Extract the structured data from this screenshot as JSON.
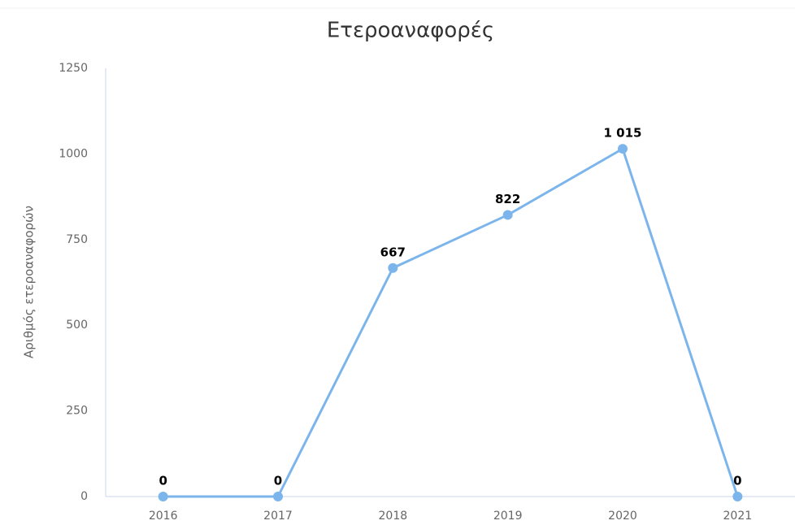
{
  "chart_data": {
    "type": "line",
    "title": "Ετεροαναφορές",
    "y_label": "Αριθμός ετεροαναφορών",
    "categories": [
      "2016",
      "2017",
      "2018",
      "2019",
      "2020",
      "2021"
    ],
    "values": [
      0,
      0,
      667,
      822,
      1015,
      0
    ],
    "value_labels": [
      "0",
      "0",
      "667",
      "822",
      "1 015",
      "0"
    ],
    "color": "#7cb5ec",
    "ylim": [
      0,
      1250
    ],
    "yticks": [
      0,
      250,
      500,
      750,
      1000,
      1250
    ],
    "grid": false
  }
}
